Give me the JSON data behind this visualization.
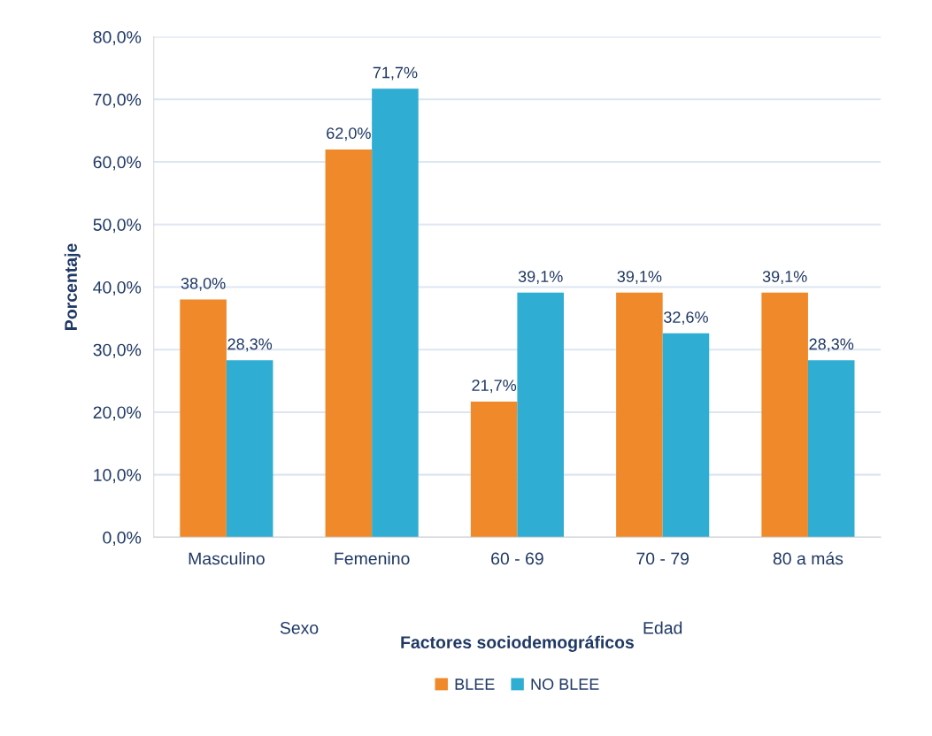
{
  "chart_data": {
    "type": "bar",
    "categories": [
      "Masculino",
      "Femenino",
      "60 - 69",
      "70 - 79",
      "80 a más"
    ],
    "series": [
      {
        "name": "BLEE",
        "color": "#f0892a",
        "values": [
          38.0,
          62.0,
          21.7,
          39.1,
          39.1
        ],
        "value_labels": [
          "38,0%",
          "62,0%",
          "21,7%",
          "39,1%",
          "39,1%"
        ]
      },
      {
        "name": "NO BLEE",
        "color": "#2fadd3",
        "values": [
          28.3,
          71.7,
          39.1,
          32.6,
          28.3
        ],
        "value_labels": [
          "28,3%",
          "71,7%",
          "39,1%",
          "32,6%",
          "28,3%"
        ]
      }
    ],
    "xlabel": "Factores sociodemográficos",
    "ylabel": "Porcentaje",
    "annotations": [
      "Sexo",
      "Edad"
    ],
    "ylim": [
      0,
      80
    ],
    "yticks": [
      {
        "value": 0,
        "label": "0,0%"
      },
      {
        "value": 10,
        "label": "10,0%"
      },
      {
        "value": 20,
        "label": "20,0%"
      },
      {
        "value": 30,
        "label": "30,0%"
      },
      {
        "value": 40,
        "label": "40,0%"
      },
      {
        "value": 50,
        "label": "50,0%"
      },
      {
        "value": 60,
        "label": "60,0%"
      },
      {
        "value": 70,
        "label": "70,0%"
      },
      {
        "value": 80,
        "label": "80,0%"
      }
    ],
    "grid": "y",
    "legend": "bottom"
  }
}
